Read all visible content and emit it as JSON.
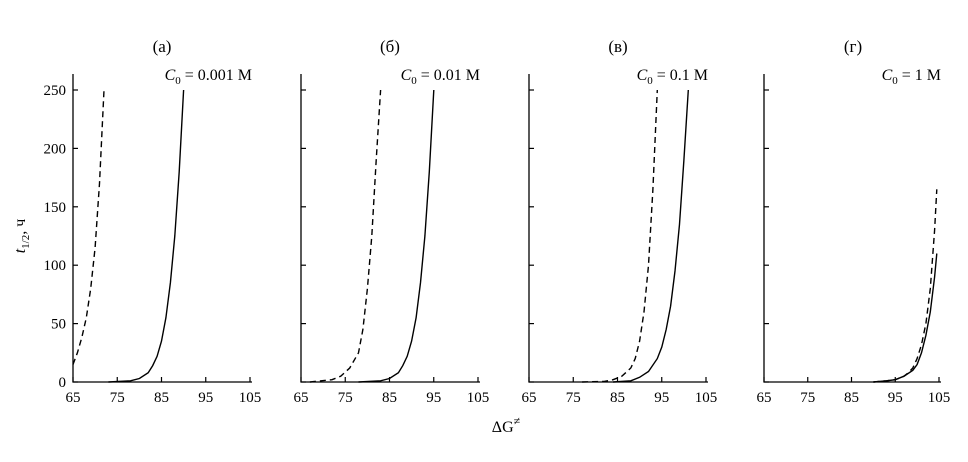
{
  "colors": {
    "curve": "#000000",
    "axis": "#000000",
    "background": "#ffffff"
  },
  "figure": {
    "ylabel_main": "t",
    "ylabel_sub": "1/2",
    "ylabel_unit": ", ч",
    "xlabel_main": "ΔG",
    "xlabel_sup": "≠"
  },
  "chart_data": [
    {
      "type": "line",
      "panel_label": "(а)",
      "conc_var": "C",
      "conc_sub": "0",
      "conc_value": " = 0.001 М",
      "xlim": [
        65,
        105
      ],
      "ylim": [
        0,
        250
      ],
      "xticks": [
        65,
        75,
        85,
        95,
        105
      ],
      "yticks": [
        0,
        50,
        100,
        150,
        200,
        250
      ],
      "series": [
        {
          "style": "solid",
          "x": [
            73,
            78,
            80,
            82,
            83,
            84,
            85,
            86,
            87,
            88,
            89,
            90
          ],
          "y": [
            0,
            1,
            3,
            8,
            14,
            22,
            35,
            55,
            85,
            125,
            180,
            250
          ]
        },
        {
          "style": "dashed",
          "x": [
            65,
            66,
            67,
            68,
            69,
            70,
            71,
            72
          ],
          "y": [
            15,
            25,
            38,
            55,
            80,
            115,
            170,
            250
          ]
        }
      ]
    },
    {
      "type": "line",
      "panel_label": "(б)",
      "conc_var": "C",
      "conc_sub": "0",
      "conc_value": " = 0.01 М",
      "xlim": [
        65,
        105
      ],
      "ylim": [
        0,
        250
      ],
      "xticks": [
        65,
        75,
        85,
        95,
        105
      ],
      "yticks": [
        0,
        50,
        100,
        150,
        200,
        250
      ],
      "series": [
        {
          "style": "solid",
          "x": [
            78,
            83,
            85,
            87,
            88,
            89,
            90,
            91,
            92,
            93,
            94,
            95
          ],
          "y": [
            0,
            1,
            3,
            8,
            14,
            22,
            35,
            55,
            85,
            125,
            180,
            250
          ]
        },
        {
          "style": "dashed",
          "x": [
            67,
            72,
            74,
            76,
            78,
            79,
            80,
            81,
            82,
            83
          ],
          "y": [
            0,
            2,
            5,
            12,
            25,
            45,
            80,
            125,
            190,
            250
          ]
        }
      ]
    },
    {
      "type": "line",
      "panel_label": "(в)",
      "conc_var": "C",
      "conc_sub": "0",
      "conc_value": " = 0.1 М",
      "xlim": [
        65,
        105
      ],
      "ylim": [
        0,
        250
      ],
      "xticks": [
        65,
        75,
        85,
        95,
        105
      ],
      "yticks": [
        0,
        50,
        100,
        150,
        200,
        250
      ],
      "series": [
        {
          "style": "solid",
          "x": [
            84,
            88,
            90,
            92,
            94,
            95,
            96,
            97,
            98,
            99,
            100,
            101
          ],
          "y": [
            0,
            1,
            4,
            9,
            20,
            30,
            45,
            65,
            95,
            135,
            190,
            250
          ]
        },
        {
          "style": "dashed",
          "x": [
            77,
            82,
            84,
            86,
            88,
            89,
            90,
            91,
            92,
            93,
            94
          ],
          "y": [
            0,
            0.5,
            2,
            5,
            12,
            20,
            35,
            60,
            100,
            165,
            250
          ]
        }
      ]
    },
    {
      "type": "line",
      "panel_label": "(г)",
      "conc_var": "C",
      "conc_sub": "0",
      "conc_value": " = 1 М",
      "xlim": [
        65,
        105
      ],
      "ylim": [
        0,
        250
      ],
      "xticks": [
        65,
        75,
        85,
        95,
        105
      ],
      "yticks": [
        0,
        50,
        100,
        150,
        200,
        250
      ],
      "series": [
        {
          "style": "solid",
          "x": [
            90,
            93,
            95,
            97,
            99,
            100,
            101,
            102,
            103,
            104,
            104.5
          ],
          "y": [
            0,
            1,
            2,
            5,
            10,
            15,
            25,
            40,
            60,
            90,
            110
          ]
        },
        {
          "style": "dashed",
          "x": [
            90,
            93,
            95,
            97,
            98,
            99,
            100,
            101,
            102,
            103,
            104,
            104.5
          ],
          "y": [
            0,
            1,
            2,
            5,
            8,
            12,
            20,
            32,
            50,
            80,
            130,
            165
          ]
        }
      ]
    }
  ]
}
